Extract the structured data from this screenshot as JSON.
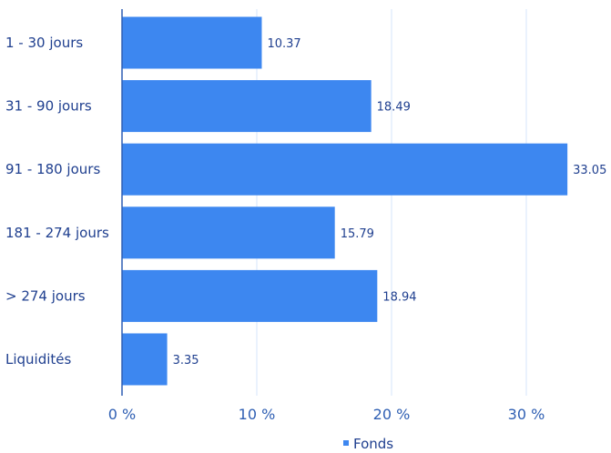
{
  "chart_data": {
    "type": "bar",
    "orientation": "horizontal",
    "categories": [
      "1 - 30 jours",
      "31 - 90 jours",
      "91 - 180 jours",
      "181 - 274 jours",
      "> 274 jours",
      "Liquidités"
    ],
    "series": [
      {
        "name": "Fonds",
        "values": [
          10.37,
          18.49,
          33.05,
          15.79,
          18.94,
          3.35
        ]
      }
    ],
    "value_labels": [
      "10.37",
      "18.49",
      "33.05",
      "15.79",
      "18.94",
      "3.35"
    ],
    "x_ticks": [
      0,
      10,
      20,
      30
    ],
    "x_tick_labels": [
      "0 %",
      "10 %",
      "20 %",
      "30 %"
    ],
    "xlim": [
      0,
      33.05
    ],
    "grid": "vertical",
    "legend": "bottom",
    "colors": {
      "bar": "#3d87f0",
      "grid": "#d6e6fb",
      "text": "#1f3f8f",
      "tick_text": "#2f5fb3",
      "axis": "#2f5fb3"
    }
  }
}
